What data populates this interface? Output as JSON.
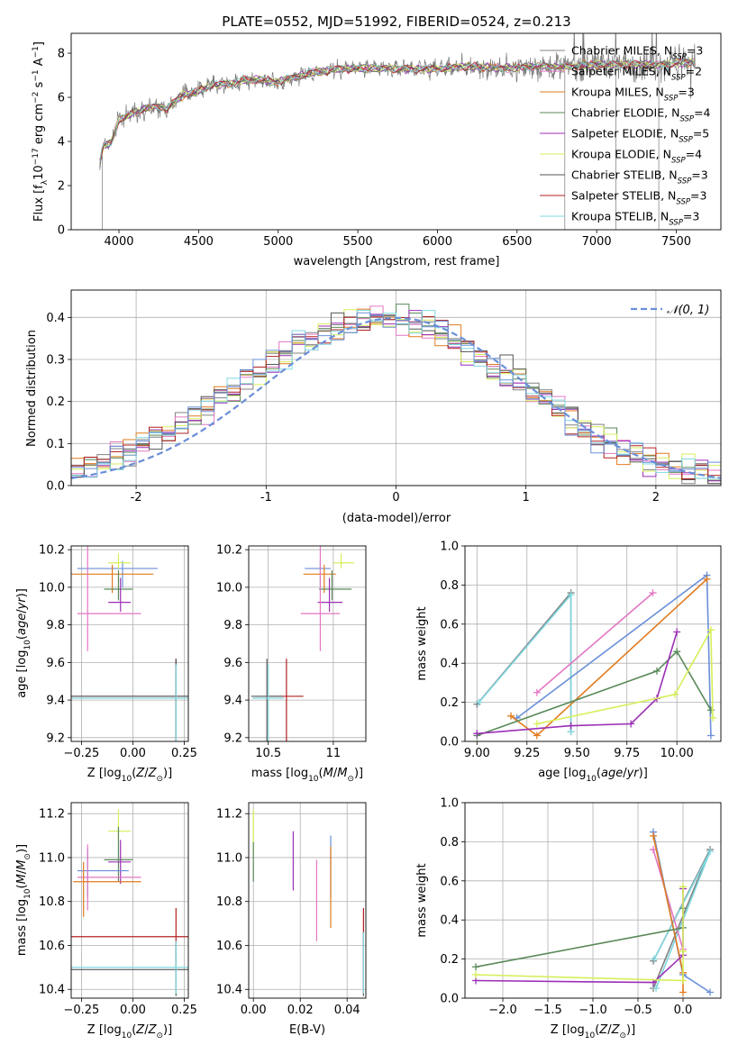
{
  "colors": {
    "Chabrier MILES": "#808080",
    "Salpeter MILES": "#e377c2",
    "Kroupa MILES": "#e07b1f",
    "Chabrier ELODIE": "#5a8a5a",
    "Salpeter ELODIE": "#9b2fb7",
    "Kroupa ELODIE": "#d6ef5a",
    "Chabrier STELIB": "#555555",
    "Salpeter STELIB": "#b22222",
    "Kroupa STELIB": "#7fd8e0",
    "blue": "#6a8fd8",
    "normal_curve": "#6a8fd8"
  },
  "chart_data": [
    {
      "id": "spectrum",
      "type": "line",
      "title": "PLATE=0552, MJD=51992, FIBERID=0524, z=0.213",
      "xlabel": "wavelength [Angstrom, rest frame]",
      "ylabel_parts": [
        "Flux [f",
        "λ",
        "10",
        "−17",
        " erg cm",
        "−2",
        " s",
        "−1",
        " A",
        "−1",
        "]"
      ],
      "xlim": [
        3700,
        7780
      ],
      "ylim": [
        0,
        8.9
      ],
      "xticks": [
        4000,
        4500,
        5000,
        5500,
        6000,
        6500,
        7000,
        7500
      ],
      "yticks": [
        0,
        2,
        4,
        6,
        8
      ],
      "legend": [
        {
          "name": "Chabrier MILES",
          "n": "3"
        },
        {
          "name": "Salpeter MILES",
          "n": "2"
        },
        {
          "name": "Kroupa MILES",
          "n": "3"
        },
        {
          "name": "Chabrier ELODIE",
          "n": "4"
        },
        {
          "name": "Salpeter ELODIE",
          "n": "5"
        },
        {
          "name": "Kroupa ELODIE",
          "n": "4"
        },
        {
          "name": "Chabrier STELIB",
          "n": "3"
        },
        {
          "name": "Salpeter STELIB",
          "n": "3"
        },
        {
          "name": "Kroupa STELIB",
          "n": "3"
        }
      ],
      "legend_placement": "upper-right",
      "grid": false,
      "model_flux_points": {
        "wavelength": [
          3880,
          3900,
          3950,
          4000,
          4100,
          4200,
          4300,
          4400,
          4500,
          4600,
          4700,
          4800,
          4900,
          5000,
          5200,
          5400,
          5600,
          5800,
          6000,
          6200,
          6400,
          6600,
          6800,
          7000,
          7200,
          7400,
          7600
        ],
        "flux": [
          3.0,
          3.8,
          3.9,
          5.0,
          5.3,
          5.6,
          5.5,
          6.1,
          6.3,
          6.6,
          6.6,
          6.8,
          6.8,
          6.7,
          7.1,
          7.3,
          7.3,
          7.3,
          7.3,
          7.4,
          7.3,
          7.4,
          7.4,
          7.5,
          7.5,
          7.5,
          7.6
        ]
      },
      "data_spike_wavelengths": [
        3895,
        6800,
        7120,
        7390
      ]
    },
    {
      "id": "residual-histogram",
      "type": "step-histogram",
      "xlabel": "(data-model)/error",
      "ylabel": "Normed distribution",
      "xlim": [
        -2.5,
        2.5
      ],
      "ylim": [
        0,
        0.465
      ],
      "xticks": [
        -2,
        -1,
        0,
        1,
        2
      ],
      "yticks": [
        0.0,
        0.1,
        0.2,
        0.3,
        0.4
      ],
      "grid": true,
      "legend": [
        "𝒩(0, 1)"
      ],
      "legend_placement": "upper-right",
      "bin_width": 0.1
    },
    {
      "id": "age-vs-Z",
      "type": "errorbar",
      "xlabel": "Z [log10(Z/Z☉)]",
      "ylabel": "age  [log10(age/yr)]",
      "xlim": [
        -0.3,
        0.27
      ],
      "ylim": [
        9.18,
        10.22
      ],
      "xticks": [
        -0.25,
        0.0,
        0.25
      ],
      "xticklabels": [
        "−0.25",
        "0.00",
        "0.25"
      ],
      "yticks": [
        9.2,
        9.4,
        9.6,
        9.8,
        10.0,
        10.2
      ],
      "grid": true,
      "points": [
        {
          "series": "blue",
          "x": -0.05,
          "y": 10.1,
          "xerr": [
            0.22,
            0.17
          ],
          "yerr": [
            0.1,
            0.04
          ]
        },
        {
          "series": "Kroupa MILES",
          "x": -0.1,
          "y": 10.07,
          "xerr": [
            0.2,
            0.2
          ],
          "yerr": [
            0.1,
            0.05
          ]
        },
        {
          "series": "Kroupa ELODIE",
          "x": -0.07,
          "y": 10.13,
          "xerr": [
            0.05,
            0.06
          ],
          "yerr": [
            0.03,
            0.05
          ]
        },
        {
          "series": "Chabrier ELODIE",
          "x": -0.07,
          "y": 9.99,
          "xerr": [
            0.07,
            0.07
          ],
          "yerr": [
            0.06,
            0.1
          ]
        },
        {
          "series": "Salpeter ELODIE",
          "x": -0.06,
          "y": 9.92,
          "xerr": [
            0.06,
            0.05
          ],
          "yerr": [
            0.05,
            0.13
          ]
        },
        {
          "series": "Salpeter MILES",
          "x": -0.22,
          "y": 9.86,
          "xerr": [
            0.05,
            0.26
          ],
          "yerr": [
            0.2,
            0.56
          ]
        },
        {
          "series": "Salpeter STELIB",
          "x": 0.21,
          "y": 9.42,
          "xerr": [
            0.51,
            0.06
          ],
          "yerr": [
            0.4,
            0.2
          ]
        },
        {
          "series": "Chabrier STELIB",
          "x": 0.21,
          "y": 9.42,
          "xerr": [
            0.51,
            0.06
          ],
          "yerr": [
            0.36,
            0.2
          ]
        },
        {
          "series": "Kroupa STELIB",
          "x": 0.21,
          "y": 9.41,
          "xerr": [
            0.51,
            0.06
          ],
          "yerr": [
            0.34,
            0.18
          ]
        }
      ]
    },
    {
      "id": "age-vs-mass",
      "type": "errorbar",
      "xlabel": "mass [log10(M/M☉)]",
      "xlim": [
        10.35,
        11.25
      ],
      "ylim": [
        9.18,
        10.22
      ],
      "xticks": [
        10.5,
        11.0
      ],
      "yticks": [
        9.2,
        9.4,
        9.6,
        9.8,
        10.0,
        10.2
      ],
      "grid": true,
      "points": [
        {
          "series": "blue",
          "x": 10.9,
          "y": 10.1,
          "xerr": [
            0.12,
            0.08
          ],
          "yerr": [
            0.1,
            0.04
          ]
        },
        {
          "series": "Kroupa MILES",
          "x": 10.93,
          "y": 10.07,
          "xerr": [
            0.16,
            0.09
          ],
          "yerr": [
            0.1,
            0.05
          ]
        },
        {
          "series": "Kroupa ELODIE",
          "x": 11.06,
          "y": 10.13,
          "xerr": [
            0.06,
            0.1
          ],
          "yerr": [
            0.03,
            0.05
          ]
        },
        {
          "series": "Chabrier ELODIE",
          "x": 10.99,
          "y": 9.99,
          "xerr": [
            0.1,
            0.15
          ],
          "yerr": [
            0.06,
            0.1
          ]
        },
        {
          "series": "Salpeter ELODIE",
          "x": 10.97,
          "y": 9.92,
          "xerr": [
            0.09,
            0.1
          ],
          "yerr": [
            0.05,
            0.13
          ]
        },
        {
          "series": "Salpeter MILES",
          "x": 10.9,
          "y": 9.86,
          "xerr": [
            0.15,
            0.15
          ],
          "yerr": [
            0.2,
            0.56
          ]
        },
        {
          "series": "Salpeter STELIB",
          "x": 10.64,
          "y": 9.42,
          "xerr": [
            0.14,
            0.13
          ],
          "yerr": [
            0.4,
            0.2
          ]
        },
        {
          "series": "Chabrier STELIB",
          "x": 10.49,
          "y": 9.42,
          "xerr": [
            0.12,
            0.12
          ],
          "yerr": [
            0.36,
            0.2
          ]
        },
        {
          "series": "Kroupa STELIB",
          "x": 10.5,
          "y": 9.41,
          "xerr": [
            0.12,
            0.12
          ],
          "yerr": [
            0.34,
            0.18
          ]
        }
      ]
    },
    {
      "id": "mass-weight-vs-age",
      "type": "line",
      "xlabel": "age  [log10(age/yr)]",
      "ylabel": "mass weight",
      "xlim": [
        8.94,
        10.22
      ],
      "ylim": [
        0,
        1.0
      ],
      "xticks": [
        9.0,
        9.25,
        9.5,
        9.75,
        10.0
      ],
      "xticklabels": [
        "9.00",
        "9.25",
        "9.50",
        "9.75",
        "10.00"
      ],
      "yticks": [
        0.0,
        0.2,
        0.4,
        0.6,
        0.8,
        1.0
      ],
      "grid": true,
      "series": [
        {
          "name": "Chabrier MILES",
          "x": [
            9.0,
            9.47,
            9.47
          ],
          "y": [
            0.19,
            0.76,
            0.05
          ]
        },
        {
          "name": "Kroupa STELIB",
          "x": [
            9.01,
            9.47,
            9.47
          ],
          "y": [
            0.2,
            0.75,
            0.05
          ]
        },
        {
          "name": "Salpeter MILES",
          "x": [
            9.3,
            9.88
          ],
          "y": [
            0.25,
            0.76
          ]
        },
        {
          "name": "blue",
          "x": [
            9.2,
            10.15,
            10.17
          ],
          "y": [
            0.12,
            0.85,
            0.03
          ]
        },
        {
          "name": "Kroupa MILES",
          "x": [
            9.17,
            9.3,
            10.15
          ],
          "y": [
            0.13,
            0.03,
            0.83
          ]
        },
        {
          "name": "Chabrier ELODIE",
          "x": [
            9.0,
            9.9,
            10.0,
            10.17
          ],
          "y": [
            0.03,
            0.36,
            0.46,
            0.16
          ]
        },
        {
          "name": "Salpeter ELODIE",
          "x": [
            9.0,
            9.47,
            9.77,
            9.9,
            10.0
          ],
          "y": [
            0.04,
            0.08,
            0.09,
            0.22,
            0.56
          ]
        },
        {
          "name": "Kroupa ELODIE",
          "x": [
            9.3,
            9.99,
            10.17,
            10.18
          ],
          "y": [
            0.09,
            0.24,
            0.57,
            0.12
          ]
        }
      ]
    },
    {
      "id": "mass-vs-Z",
      "type": "errorbar",
      "xlabel": "Z [log10(Z/Z☉)]",
      "ylabel": "mass [log10(M/M☉)]",
      "xlim": [
        -0.3,
        0.27
      ],
      "ylim": [
        10.36,
        11.25
      ],
      "xticks": [
        -0.25,
        0.0,
        0.25
      ],
      "xticklabels": [
        "−0.25",
        "0.00",
        "0.25"
      ],
      "yticks": [
        10.4,
        10.6,
        10.8,
        11.0,
        11.2
      ],
      "grid": true,
      "points": [
        {
          "series": "Kroupa ELODIE",
          "x": -0.07,
          "y": 11.12,
          "xerr": [
            0.05,
            0.06
          ],
          "yerr": [
            0.05,
            0.1
          ]
        },
        {
          "series": "Chabrier ELODIE",
          "x": -0.07,
          "y": 10.99,
          "xerr": [
            0.07,
            0.07
          ],
          "yerr": [
            0.1,
            0.15
          ]
        },
        {
          "series": "Salpeter ELODIE",
          "x": -0.06,
          "y": 10.98,
          "xerr": [
            0.06,
            0.05
          ],
          "yerr": [
            0.1,
            0.1
          ]
        },
        {
          "series": "blue",
          "x": -0.22,
          "y": 10.94,
          "xerr": [
            0.05,
            0.2
          ],
          "yerr": [
            0.12,
            0.1
          ]
        },
        {
          "series": "Salpeter MILES",
          "x": -0.22,
          "y": 10.91,
          "xerr": [
            0.05,
            0.26
          ],
          "yerr": [
            0.15,
            0.15
          ]
        },
        {
          "series": "Kroupa MILES",
          "x": -0.24,
          "y": 10.89,
          "xerr": [
            0.05,
            0.28
          ],
          "yerr": [
            0.16,
            0.09
          ]
        },
        {
          "series": "Salpeter STELIB",
          "x": 0.21,
          "y": 10.64,
          "xerr": [
            0.51,
            0.06
          ],
          "yerr": [
            0.1,
            0.13
          ]
        },
        {
          "series": "Chabrier STELIB",
          "x": 0.21,
          "y": 10.49,
          "xerr": [
            0.51,
            0.06
          ],
          "yerr": [
            0.12,
            0.12
          ]
        },
        {
          "series": "Kroupa STELIB",
          "x": 0.21,
          "y": 10.5,
          "xerr": [
            0.51,
            0.06
          ],
          "yerr": [
            0.12,
            0.12
          ]
        }
      ]
    },
    {
      "id": "mass-vs-ebv",
      "type": "errorbar",
      "xlabel": "E(B-V)",
      "xlim": [
        -0.002,
        0.048
      ],
      "ylim": [
        10.36,
        11.25
      ],
      "xticks": [
        0.0,
        0.02,
        0.04
      ],
      "xticklabels": [
        "0.00",
        "0.02",
        "0.04"
      ],
      "yticks": [
        10.4,
        10.6,
        10.8,
        11.0,
        11.2
      ],
      "grid": true,
      "points": [
        {
          "series": "Kroupa ELODIE",
          "x": 0.0,
          "y": 11.12,
          "xerr": [
            0,
            0
          ],
          "yerr": [
            0.1,
            0.1
          ]
        },
        {
          "series": "Chabrier ELODIE",
          "x": 0.0,
          "y": 10.99,
          "xerr": [
            0,
            0
          ],
          "yerr": [
            0.1,
            0.08
          ]
        },
        {
          "series": "Salpeter ELODIE",
          "x": 0.017,
          "y": 10.98,
          "xerr": [
            0,
            0
          ],
          "yerr": [
            0.13,
            0.14
          ]
        },
        {
          "series": "blue",
          "x": 0.033,
          "y": 10.94,
          "xerr": [
            0,
            0
          ],
          "yerr": [
            0.12,
            0.16
          ]
        },
        {
          "series": "Salpeter MILES",
          "x": 0.027,
          "y": 10.91,
          "xerr": [
            0,
            0
          ],
          "yerr": [
            0.29,
            0.08
          ]
        },
        {
          "series": "Kroupa MILES",
          "x": 0.033,
          "y": 10.89,
          "xerr": [
            0,
            0
          ],
          "yerr": [
            0.21,
            0.16
          ]
        },
        {
          "series": "Salpeter STELIB",
          "x": 0.047,
          "y": 10.64,
          "xerr": [
            0,
            0
          ],
          "yerr": [
            0.26,
            0.13
          ]
        },
        {
          "series": "Chabrier STELIB",
          "x": 0.047,
          "y": 10.49,
          "xerr": [
            0,
            0
          ],
          "yerr": [
            0.12,
            0.17
          ]
        },
        {
          "series": "Kroupa STELIB",
          "x": 0.047,
          "y": 10.5,
          "xerr": [
            0,
            0
          ],
          "yerr": [
            0.12,
            0.16
          ]
        }
      ]
    },
    {
      "id": "mass-weight-vs-Z",
      "type": "line",
      "xlabel": "Z [log10(Z/Z☉)]",
      "ylabel": "mass weight",
      "xlim": [
        -2.42,
        0.42
      ],
      "ylim": [
        0,
        1.0
      ],
      "xticks": [
        -2.0,
        -1.5,
        -1.0,
        -0.5,
        0.0
      ],
      "xticklabels": [
        "−2.0",
        "−1.5",
        "−1.0",
        "−0.5",
        "0.0"
      ],
      "yticks": [
        0.0,
        0.2,
        0.4,
        0.6,
        0.8,
        1.0
      ],
      "grid": true,
      "series": [
        {
          "name": "Chabrier MILES",
          "x": [
            -0.33,
            0.3,
            -0.33
          ],
          "y": [
            0.19,
            0.76,
            0.05
          ]
        },
        {
          "name": "Kroupa STELIB",
          "x": [
            -0.32,
            0.3,
            -0.3
          ],
          "y": [
            0.2,
            0.75,
            0.05
          ]
        },
        {
          "name": "Salpeter MILES",
          "x": [
            -0.33,
            0.0
          ],
          "y": [
            0.76,
            0.25
          ]
        },
        {
          "name": "blue",
          "x": [
            -0.33,
            0.0,
            0.3
          ],
          "y": [
            0.85,
            0.12,
            0.03
          ]
        },
        {
          "name": "Kroupa MILES",
          "x": [
            -0.33,
            0.0,
            0.0
          ],
          "y": [
            0.83,
            0.13,
            0.03
          ]
        },
        {
          "name": "Chabrier ELODIE",
          "x": [
            -2.3,
            0.0,
            0.0
          ],
          "y": [
            0.16,
            0.36,
            0.46
          ]
        },
        {
          "name": "Salpeter ELODIE",
          "x": [
            -2.3,
            -0.33,
            0.0,
            0.0
          ],
          "y": [
            0.09,
            0.08,
            0.22,
            0.56
          ]
        },
        {
          "name": "Kroupa ELODIE",
          "x": [
            -2.3,
            0.0,
            0.0,
            0.0
          ],
          "y": [
            0.12,
            0.09,
            0.24,
            0.57
          ]
        }
      ]
    }
  ]
}
